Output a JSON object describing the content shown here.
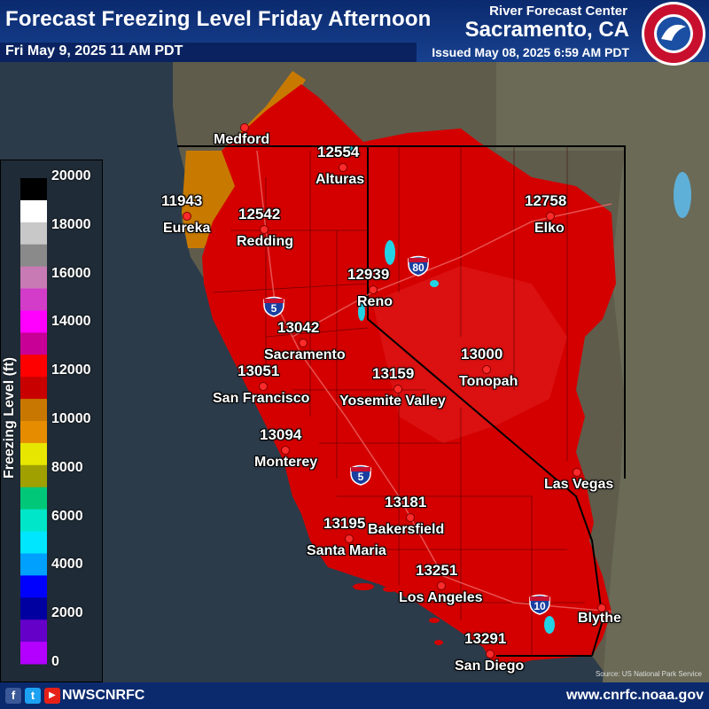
{
  "header": {
    "title": "Forecast Freezing Level Friday Afternoon",
    "valid_time": "Fri May 9, 2025 11 AM PDT",
    "center": "River Forecast Center",
    "office": "Sacramento, CA",
    "issued": "Issued May 08, 2025 6:59 AM PDT",
    "logo_text": "NATIONAL WEATHER SERVICE"
  },
  "colorbar": {
    "axis_label": "Freezing Level (ft)",
    "ticks": [
      "20000",
      "18000",
      "16000",
      "14000",
      "12000",
      "10000",
      "8000",
      "6000",
      "4000",
      "2000",
      "0"
    ],
    "colors": [
      "#000000",
      "#ffffff",
      "#c8c8c8",
      "#8a8a8a",
      "#c87ab4",
      "#d23cc8",
      "#ff00ff",
      "#c80096",
      "#ff0000",
      "#c80000",
      "#c87800",
      "#e68c00",
      "#e6e600",
      "#a0a000",
      "#00c878",
      "#00e6c8",
      "#00e6ff",
      "#00a0ff",
      "#0000ff",
      "#0000a0",
      "#6400c8",
      "#b400ff"
    ]
  },
  "locations": [
    {
      "name": "Medford",
      "value": ""
    },
    {
      "name": "Alturas",
      "value": "12554"
    },
    {
      "name": "Eureka",
      "value": "11943"
    },
    {
      "name": "Redding",
      "value": "12542"
    },
    {
      "name": "Elko",
      "value": "12758"
    },
    {
      "name": "Reno",
      "value": "12939"
    },
    {
      "name": "Sacramento",
      "value": "13042"
    },
    {
      "name": "San Francisco",
      "value": "13051"
    },
    {
      "name": "Yosemite Valley",
      "value": "13159"
    },
    {
      "name": "Tonopah",
      "value": "13000"
    },
    {
      "name": "Monterey",
      "value": "13094"
    },
    {
      "name": "Las Vegas",
      "value": ""
    },
    {
      "name": "Bakersfield",
      "value": "13181"
    },
    {
      "name": "Santa Maria",
      "value": "13195"
    },
    {
      "name": "Los Angeles",
      "value": "13251"
    },
    {
      "name": "Blythe",
      "value": ""
    },
    {
      "name": "San Diego",
      "value": "13291"
    }
  ],
  "highways": [
    "5",
    "80",
    "5",
    "10"
  ],
  "footer": {
    "handle": "NWSCNRFC",
    "url": "www.cnrfc.noaa.gov",
    "source": "Source: US National Park Service",
    "social": [
      "f",
      "t",
      "▶"
    ]
  },
  "colors": {
    "header_bg": "#17418f",
    "freezing_red": "#d40000",
    "freezing_orange": "#c87a00",
    "ocean": "#2b3b4a"
  }
}
